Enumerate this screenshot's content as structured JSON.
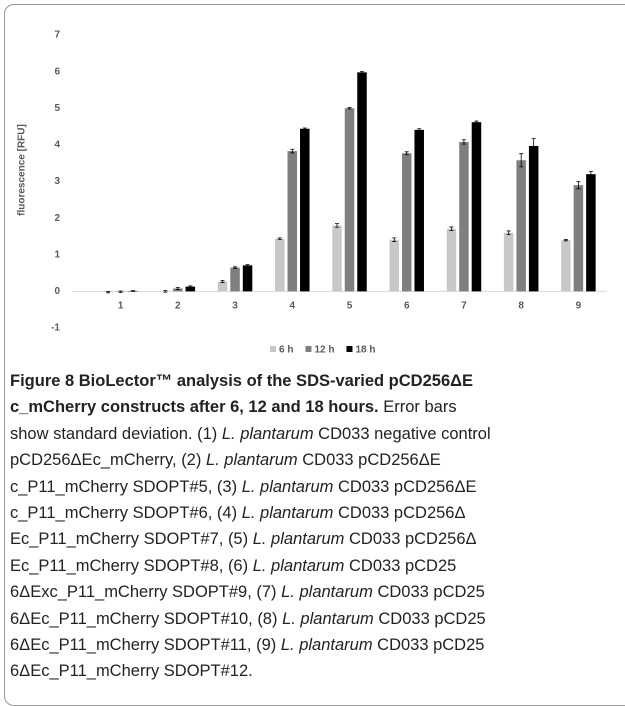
{
  "chart_data": {
    "type": "bar",
    "y_label": "fluorescence [RFU]",
    "categories": [
      "1",
      "2",
      "3",
      "4",
      "5",
      "6",
      "7",
      "8",
      "9"
    ],
    "series": [
      {
        "name": "6 h",
        "color": "#c8c8c8",
        "values": [
          -0.02,
          0.0,
          0.27,
          1.44,
          1.8,
          1.41,
          1.71,
          1.6,
          1.4
        ],
        "errors": [
          0.02,
          0.02,
          0.03,
          0.02,
          0.05,
          0.05,
          0.05,
          0.05,
          0.02
        ]
      },
      {
        "name": "12 h",
        "color": "#7f7f7f",
        "values": [
          -0.01,
          0.08,
          0.65,
          3.83,
          5.0,
          3.77,
          4.08,
          3.58,
          2.9
        ],
        "errors": [
          0.02,
          0.03,
          0.02,
          0.05,
          0.02,
          0.04,
          0.06,
          0.18,
          0.1
        ]
      },
      {
        "name": "18 h",
        "color": "#000000",
        "values": [
          0.01,
          0.13,
          0.71,
          4.44,
          5.98,
          4.41,
          4.62,
          3.97,
          3.2
        ],
        "errors": [
          0.01,
          0.02,
          0.02,
          0.02,
          0.02,
          0.03,
          0.03,
          0.2,
          0.07
        ]
      }
    ],
    "ylim": [
      -1,
      7
    ],
    "yticks": [
      -1,
      0,
      1,
      2,
      3,
      4,
      5,
      6,
      7
    ],
    "grid": false,
    "legend": "bottom"
  },
  "caption": {
    "lines": [
      [
        {
          "text": "Figure 8 BioLector™ analysis of the SDS-varied pCD256ΔE",
          "style": "bold"
        }
      ],
      [
        {
          "text": "c_mCherry constructs after 6, 12 and 18 hours.",
          "style": "bold"
        },
        {
          "text": " Error bars",
          "style": "normal"
        }
      ],
      [
        {
          "text": "show standard deviation. (1) ",
          "style": "normal"
        },
        {
          "text": "L. plantarum",
          "style": "italic"
        },
        {
          "text": " CD033 negative control",
          "style": "normal"
        }
      ],
      [
        {
          "text": "pCD256ΔEc_mCherry, (2) ",
          "style": "normal"
        },
        {
          "text": "L. plantarum",
          "style": "italic"
        },
        {
          "text": " CD033 pCD256ΔE",
          "style": "normal"
        }
      ],
      [
        {
          "text": "c_P11_mCherry SDOPT#5, (3) ",
          "style": "normal"
        },
        {
          "text": "L. plantarum",
          "style": "italic"
        },
        {
          "text": " CD033 pCD256ΔE",
          "style": "normal"
        }
      ],
      [
        {
          "text": "c_P11_mCherry SDOPT#6, (4) ",
          "style": "normal"
        },
        {
          "text": "L. plantarum",
          "style": "italic"
        },
        {
          "text": " CD033 pCD256Δ",
          "style": "normal"
        }
      ],
      [
        {
          "text": "Ec_P11_mCherry SDOPT#7, (5) ",
          "style": "normal"
        },
        {
          "text": "L. plantarum",
          "style": "italic"
        },
        {
          "text": " CD033 pCD256Δ",
          "style": "normal"
        }
      ],
      [
        {
          "text": "Ec_P11_mCherry SDOPT#8, (6) ",
          "style": "normal"
        },
        {
          "text": "L. plantarum",
          "style": "italic"
        },
        {
          "text": " CD033 pCD25",
          "style": "normal"
        }
      ],
      [
        {
          "text": "6ΔExc_P11_mCherry SDOPT#9, (7) ",
          "style": "normal"
        },
        {
          "text": "L. plantarum",
          "style": "italic"
        },
        {
          "text": " CD033 pCD25",
          "style": "normal"
        }
      ],
      [
        {
          "text": "6ΔEc_P11_mCherry SDOPT#10, (8) ",
          "style": "normal"
        },
        {
          "text": "L. plantarum",
          "style": "italic"
        },
        {
          "text": " CD033 pCD25",
          "style": "normal"
        }
      ],
      [
        {
          "text": "6ΔEc_P11_mCherry SDOPT#11, (9) ",
          "style": "normal"
        },
        {
          "text": "L. plantarum",
          "style": "italic"
        },
        {
          "text": " CD033 pCD25",
          "style": "normal"
        }
      ],
      [
        {
          "text": "6ΔEc_P11_mCherry SDOPT#12.",
          "style": "normal"
        }
      ]
    ]
  }
}
